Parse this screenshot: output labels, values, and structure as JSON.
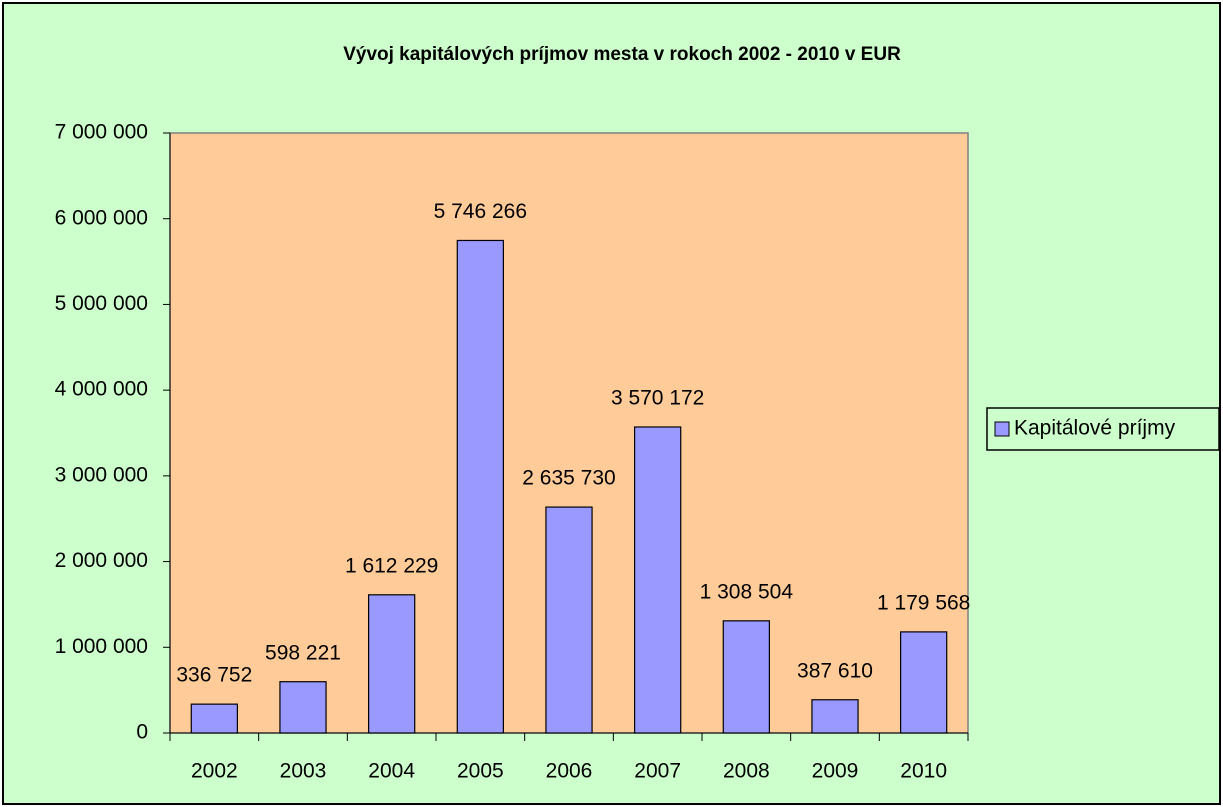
{
  "chart_data": {
    "type": "bar",
    "title": "Vývoj kapitálových  príjmov mesta v rokoch 2002 - 2010 v EUR",
    "categories": [
      "2002",
      "2003",
      "2004",
      "2005",
      "2006",
      "2007",
      "2008",
      "2009",
      "2010"
    ],
    "series": [
      {
        "name": "Kapitálové príjmy",
        "color": "#9999ff",
        "values": [
          336752,
          598221,
          1612229,
          5746266,
          2635730,
          3570172,
          1308504,
          387610,
          1179568
        ],
        "value_labels": [
          "336 752",
          "598 221",
          "1 612 229",
          "5 746 266",
          "2 635 730",
          "3 570 172",
          "1 308 504",
          "387 610",
          "1 179 568"
        ]
      }
    ],
    "ylim": [
      0,
      7000000
    ],
    "yticks": [
      0,
      {
        "value": 1000000,
        "label": "1 000 000"
      },
      {
        "value": 2000000,
        "label": "2 000 000"
      },
      {
        "value": 3000000,
        "label": "3 000 000"
      },
      {
        "value": 4000000,
        "label": "4 000 000"
      },
      {
        "value": 5000000,
        "label": "5 000 000"
      },
      {
        "value": 6000000,
        "label": "6 000 000"
      },
      {
        "value": 7000000,
        "label": "7 000 000"
      }
    ],
    "grid": false,
    "legend": "right"
  }
}
